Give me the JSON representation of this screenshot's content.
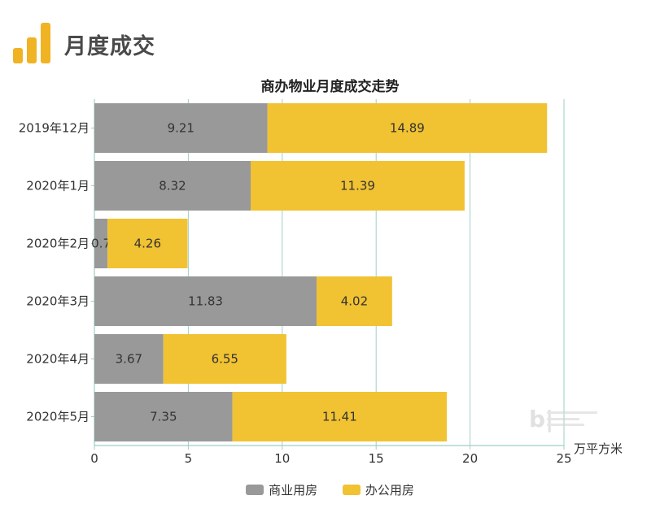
{
  "header": {
    "title": "月度成交",
    "icon": "bar-chart-icon",
    "icon_color": "#f0b323"
  },
  "chart_data": {
    "type": "bar",
    "orientation": "horizontal",
    "stacked": true,
    "title": "商办物业月度成交走势",
    "categories": [
      "2019年12月",
      "2020年1月",
      "2020年2月",
      "2020年3月",
      "2020年4月",
      "2020年5月"
    ],
    "series": [
      {
        "name": "商业用房",
        "color": "#999999",
        "values": [
          9.21,
          8.32,
          0.7,
          11.83,
          3.67,
          7.35
        ],
        "labels": [
          "9.21",
          "8.32",
          "0.7",
          "11.83",
          "3.67",
          "7.35"
        ]
      },
      {
        "name": "办公用房",
        "color": "#f1c232",
        "values": [
          14.89,
          11.39,
          4.26,
          4.02,
          6.55,
          11.41
        ],
        "labels": [
          "14.89",
          "11.39",
          "4.26",
          "4.02",
          "6.55",
          "11.41"
        ]
      }
    ],
    "xlim": [
      0,
      25
    ],
    "xticks": [
      "0",
      "5",
      "10",
      "15",
      "20",
      "25"
    ],
    "xlabel": "万平方米",
    "ylabel": "",
    "grid": true,
    "grid_color": "#9ecfc6",
    "legend_position": "bottom"
  },
  "legend": {
    "items": [
      {
        "label": "商业用房",
        "color": "#999999"
      },
      {
        "label": "办公用房",
        "color": "#f1c232"
      }
    ]
  }
}
